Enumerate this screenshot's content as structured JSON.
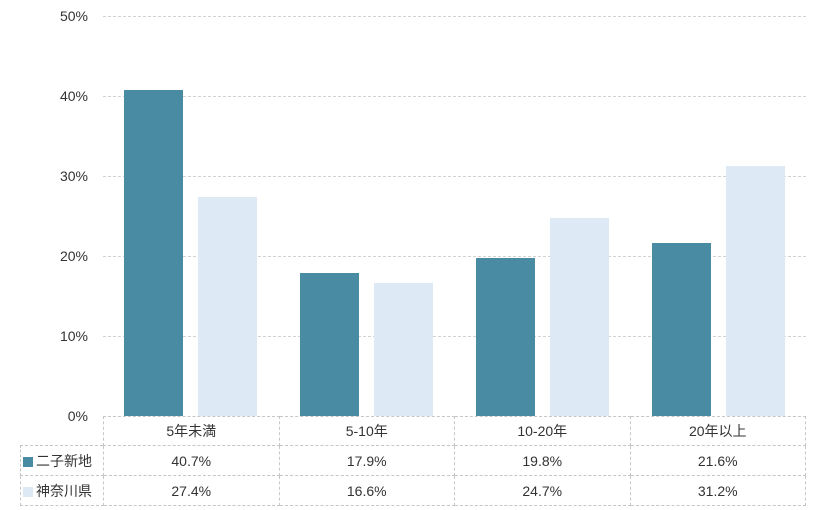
{
  "chart_data": {
    "type": "bar",
    "categories": [
      "5年未満",
      "5-10年",
      "10-20年",
      "20年以上"
    ],
    "series": [
      {
        "name": "二子新地",
        "color": "#4A8BA4",
        "values": [
          40.7,
          17.9,
          19.8,
          21.6
        ]
      },
      {
        "name": "神奈川県",
        "color": "#DDE9F4",
        "values": [
          27.4,
          16.6,
          24.7,
          31.2
        ]
      }
    ],
    "title": "",
    "xlabel": "",
    "ylabel": "",
    "ylim": [
      0,
      50
    ],
    "y_tick_values": [
      0,
      10,
      20,
      30,
      40,
      50
    ],
    "y_tick_labels": [
      "0%",
      "10%",
      "20%",
      "30%",
      "40%",
      "50%"
    ],
    "grid": "horizontal-dashed",
    "legend_position": "table-left"
  },
  "table": {
    "header": [
      "5年未満",
      "5-10年",
      "10-20年",
      "20年以上"
    ],
    "rows": [
      {
        "label": "二子新地",
        "values": [
          "40.7%",
          "17.9%",
          "19.8%",
          "21.6%"
        ]
      },
      {
        "label": "神奈川県",
        "values": [
          "27.4%",
          "16.6%",
          "24.7%",
          "31.2%"
        ]
      }
    ]
  },
  "colors": {
    "series_1": "#4A8BA4",
    "series_2": "#DDE9F4",
    "gridline": "#D2D2D2",
    "table_border": "#C6C6C6",
    "text": "#333333",
    "background": "#FFFFFF"
  }
}
